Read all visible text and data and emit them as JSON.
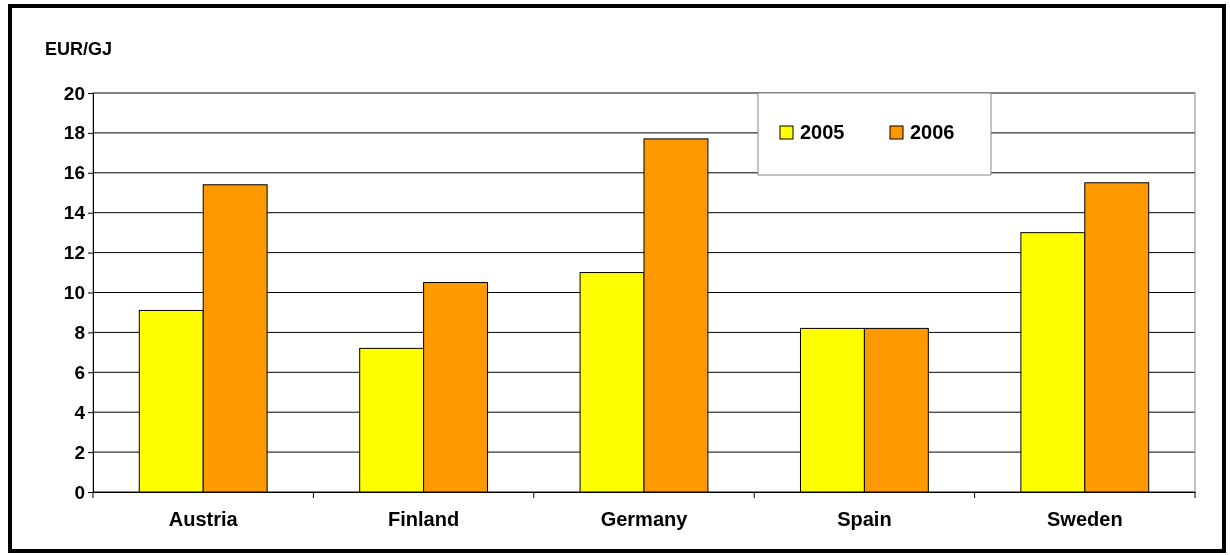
{
  "chart_data": {
    "type": "bar",
    "ylabel": "EUR/GJ",
    "categories": [
      "Austria",
      "Finland",
      "Germany",
      "Spain",
      "Sweden"
    ],
    "series": [
      {
        "name": "2005",
        "color": "#ffff00",
        "values": [
          9.1,
          7.2,
          11.0,
          8.2,
          13.0
        ]
      },
      {
        "name": "2006",
        "color": "#ff9900",
        "values": [
          15.4,
          10.5,
          17.7,
          8.2,
          15.5
        ]
      }
    ],
    "ylim": [
      0,
      20
    ],
    "yticks": [
      0,
      2,
      4,
      6,
      8,
      10,
      12,
      14,
      16,
      18,
      20
    ],
    "grid": "y",
    "legend": "top right"
  }
}
